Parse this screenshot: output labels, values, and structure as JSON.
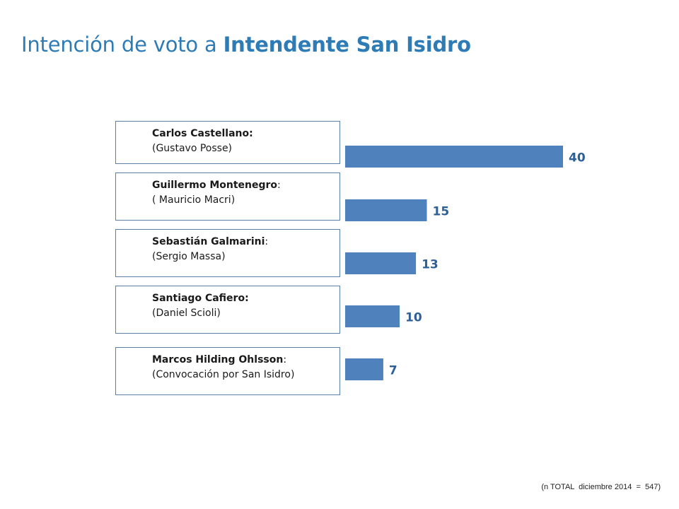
{
  "title": {
    "prefix": "Intención de voto a ",
    "bold": "Intendente San Isidro"
  },
  "rows": [
    {
      "name": "Carlos Castellano",
      "colon": ":",
      "name_colon_bold": true,
      "sub": "(Gustavo Posse)"
    },
    {
      "name": "Guillermo Montenegro",
      "colon": ":",
      "name_colon_bold": false,
      "sub": "( Mauricio Macri)"
    },
    {
      "name": "Sebastián Galmarini",
      "colon": ":",
      "name_colon_bold": false,
      "sub": "(Sergio Massa)"
    },
    {
      "name": "Santiago Cafiero",
      "colon": ":",
      "name_colon_bold": true,
      "sub": "(Daniel Scioli)"
    },
    {
      "name": "Marcos Hilding Ohlsson",
      "colon": ":",
      "name_colon_bold": false,
      "sub": "(Convocación por San Isidro)"
    }
  ],
  "chart_data": {
    "type": "bar",
    "orientation": "horizontal",
    "categories": [
      "Carlos Castellano: (Gustavo Posse)",
      "Guillermo Montenegro: ( Mauricio Macri)",
      "Sebastián Galmarini: (Sergio Massa)",
      "Santiago Cafiero: (Daniel Scioli)",
      "Marcos Hilding Ohlsson: (Convocación por San Isidro)"
    ],
    "values": [
      40,
      15,
      13,
      10,
      7
    ],
    "data_labels": [
      "40",
      "15",
      "13",
      "10",
      "7"
    ],
    "bar_color": "#4f81bd",
    "label_color": "#2f5f97",
    "xlim": [
      0,
      40
    ],
    "grid": false
  },
  "footnote": "(n TOTAL  diciembre 2014  =  547)"
}
